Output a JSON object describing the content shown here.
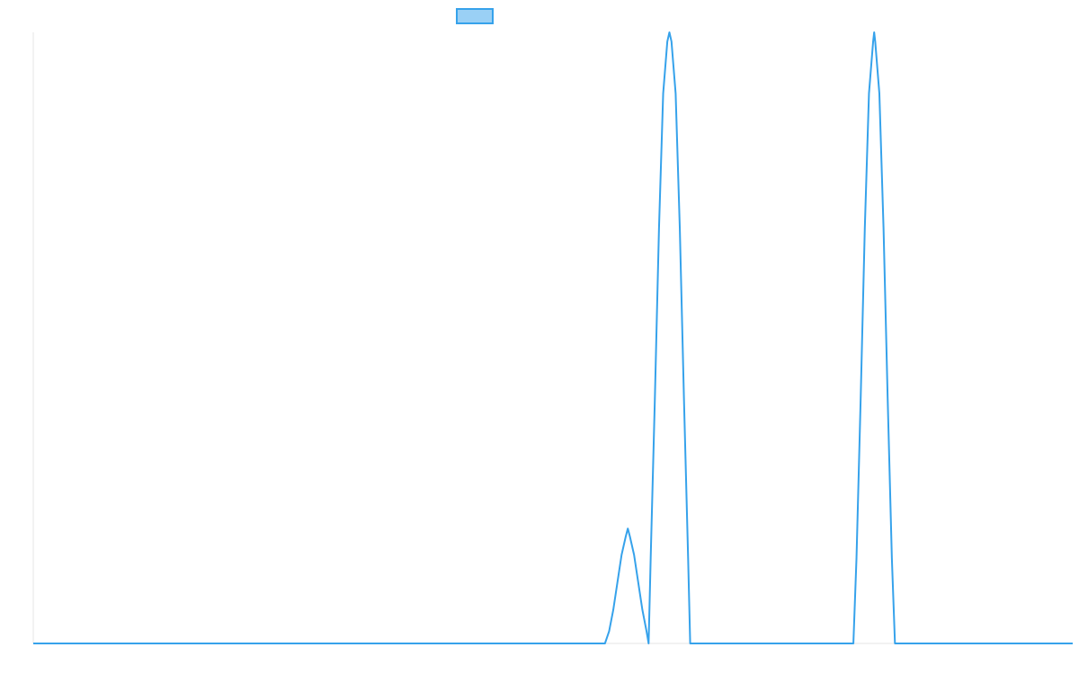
{
  "chart_data": {
    "type": "line",
    "title": "",
    "xlabel": "",
    "ylabel": "",
    "grid": false,
    "legend": {
      "placement": "top-center",
      "entries": [
        {
          "label": ""
        }
      ]
    },
    "colors": {
      "line": "#36a2eb",
      "fill": "#9ad0f5",
      "axis": "#e5e5e5"
    },
    "xlim": [
      0,
      100
    ],
    "ylim": [
      0,
      100
    ],
    "series": [
      {
        "values_description": "piecewise",
        "points": [
          [
            0,
            0
          ],
          [
            55,
            0
          ],
          [
            55.4,
            2
          ],
          [
            55.8,
            5.5
          ],
          [
            56.2,
            10
          ],
          [
            56.6,
            14.5
          ],
          [
            57.0,
            17.5
          ],
          [
            57.2,
            18.8
          ],
          [
            57.4,
            17.5
          ],
          [
            57.8,
            14.5
          ],
          [
            58.2,
            10
          ],
          [
            58.6,
            5.5
          ],
          [
            59.0,
            2
          ],
          [
            59.2,
            0
          ],
          [
            59.4,
            14
          ],
          [
            59.8,
            40
          ],
          [
            60.2,
            68
          ],
          [
            60.6,
            90
          ],
          [
            61.0,
            98.5
          ],
          [
            61.2,
            100
          ],
          [
            61.4,
            98.5
          ],
          [
            61.8,
            90
          ],
          [
            62.2,
            68
          ],
          [
            62.6,
            40
          ],
          [
            63.0,
            14
          ],
          [
            63.2,
            0
          ],
          [
            78.9,
            0
          ],
          [
            79.2,
            14
          ],
          [
            79.6,
            40
          ],
          [
            80.0,
            68
          ],
          [
            80.4,
            90
          ],
          [
            80.8,
            98.5
          ],
          [
            80.9,
            100
          ],
          [
            81.0,
            98.5
          ],
          [
            81.4,
            90
          ],
          [
            81.8,
            68
          ],
          [
            82.2,
            40
          ],
          [
            82.6,
            14
          ],
          [
            82.9,
            0
          ],
          [
            100,
            0
          ]
        ]
      }
    ]
  }
}
